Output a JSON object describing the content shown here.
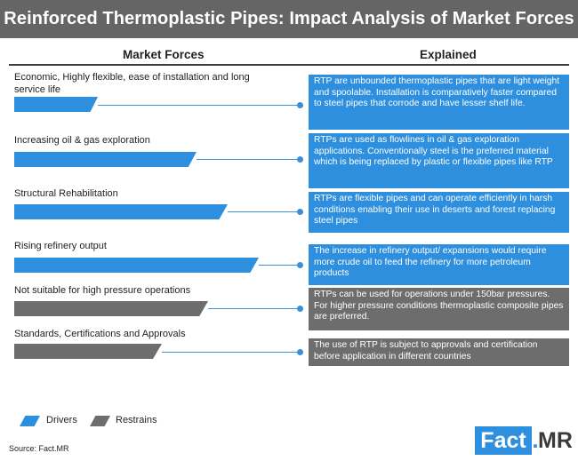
{
  "title": "Reinforced Thermoplastic Pipes: Impact Analysis of Market Forces",
  "headers": {
    "left": "Market Forces",
    "right": "Explained"
  },
  "rows": [
    {
      "force": "Economic, Highly flexible, ease of installation and long service life",
      "type": "driver",
      "explained": "RTP are unbounded thermoplastic pipes that are light weight and spoolable. Installation is comparatively faster compared to steel pipes that corrode and have lesser shelf life."
    },
    {
      "force": "Increasing oil & gas exploration",
      "type": "driver",
      "explained": "RTPs are used as flowlines in oil & gas exploration applications. Conventionally steel is the preferred material which is being replaced by plastic or flexible pipes like RTP"
    },
    {
      "force": "Structural Rehabilitation",
      "type": "driver",
      "explained": "RTPs are flexible pipes and can operate efficiently in harsh conditions enabling their use in deserts and forest replacing steel pipes"
    },
    {
      "force": "Rising refinery output",
      "type": "driver",
      "explained": "The increase in refinery output/ expansions would require more crude oil to feed the refinery for more petroleum products"
    },
    {
      "force": "Not suitable for high pressure operations",
      "type": "restrain",
      "explained": "RTPs can be used for operations under 150bar pressures. For higher pressure conditions thermoplastic composite pipes are preferred."
    },
    {
      "force": "Standards, Certifications and Approvals",
      "type": "restrain",
      "explained": "The use of RTP is subject to approvals and certification before application in different countries"
    }
  ],
  "legend": {
    "drivers": "Drivers",
    "restrains": "Restrains"
  },
  "source": "Source: Fact.MR",
  "logo": {
    "part1": "Fact",
    "sep": ".",
    "part2": "MR"
  },
  "colors": {
    "driver": "#2e8fde",
    "restrain": "#6d6d6d",
    "title_bg": "#656565"
  }
}
